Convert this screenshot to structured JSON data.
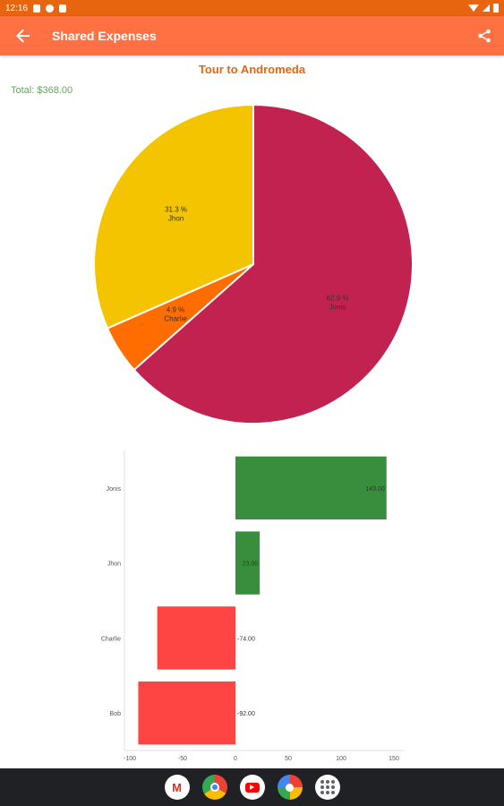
{
  "status_bar": {
    "time": "12:16"
  },
  "app_bar": {
    "title": "Shared Expenses"
  },
  "chart_title": "Tour to Andromeda",
  "total": "Total: $368.00",
  "chart_data": [
    {
      "type": "pie",
      "title": "Tour to Andromeda",
      "slices": [
        {
          "name": "Jonis",
          "percent": 62.9,
          "label": "62.9 %",
          "color": "#c2224f"
        },
        {
          "name": "Charlie",
          "percent": 4.9,
          "label": "4.9 %",
          "color": "#ff6d00"
        },
        {
          "name": "Jhon",
          "percent": 31.3,
          "label": "31.3 %",
          "color": "#f4c400"
        }
      ]
    },
    {
      "type": "bar",
      "orientation": "horizontal",
      "categories": [
        "Jonis",
        "Jhon",
        "Charlie",
        "Bob"
      ],
      "values": [
        143.0,
        23.0,
        -74.0,
        -92.0
      ],
      "value_labels": [
        "143.00",
        "23.00",
        "-74.00",
        "-92.00"
      ],
      "positive_color": "#388e3c",
      "negative_color": "#ff4444",
      "xlim": [
        -100,
        150
      ],
      "xticks": [
        -100,
        -50,
        0,
        50,
        100,
        150
      ],
      "xtick_labels": [
        "-100",
        "-50",
        "0",
        "50",
        "100",
        "150"
      ]
    }
  ],
  "icons": {
    "back": "arrow-left-icon",
    "share": "share-icon"
  },
  "colors": {
    "status_bar": "#e8650f",
    "app_bar": "#ff7043",
    "accent": "#e8650f",
    "total_text": "#66a35f"
  },
  "nav_apps": [
    "Gmail",
    "Chrome",
    "YouTube",
    "Photos",
    "All apps"
  ]
}
